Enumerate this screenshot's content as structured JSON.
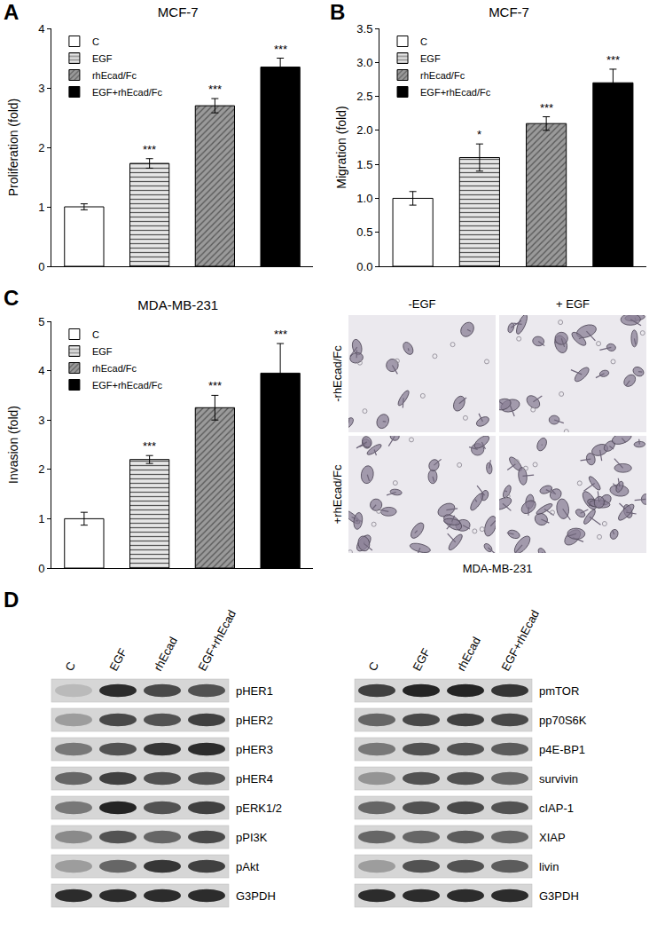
{
  "panel_labels": [
    "A",
    "B",
    "C",
    "D"
  ],
  "chart_data": [
    {
      "type": "bar",
      "title": "MCF-7",
      "ylabel": "Proliferation (fold)",
      "categories": [
        "C",
        "EGF",
        "rhEcad/Fc",
        "EGF+rhEcad/Fc"
      ],
      "values": [
        1.0,
        1.73,
        2.7,
        3.35
      ],
      "errors": [
        0.05,
        0.08,
        0.12,
        0.15
      ],
      "significance": [
        null,
        "***",
        "***",
        "***"
      ],
      "colors": [
        "#ffffff",
        "#e6e6e6",
        "#9a9a9a",
        "#000000"
      ],
      "ylim": [
        0,
        4
      ],
      "yticks": [
        0,
        1,
        2,
        3,
        4
      ],
      "legend": "upper left",
      "tick_labels": "y"
    },
    {
      "type": "bar",
      "title": "MCF-7",
      "ylabel": "Migration (fold)",
      "categories": [
        "C",
        "EGF",
        "rhEcad/Fc",
        "EGF+rhEcad/Fc"
      ],
      "values": [
        1.0,
        1.6,
        2.1,
        2.7
      ],
      "errors": [
        0.1,
        0.2,
        0.1,
        0.2
      ],
      "significance": [
        null,
        "*",
        "***",
        "***"
      ],
      "colors": [
        "#ffffff",
        "#e6e6e6",
        "#9a9a9a",
        "#000000"
      ],
      "ylim": [
        0,
        3.5
      ],
      "yticks": [
        {
          "value": 0,
          "label": "0.0"
        },
        0.5,
        {
          "value": 1,
          "label": "1.0"
        },
        1.5,
        {
          "value": 2,
          "label": "2.0"
        },
        2.5,
        {
          "value": 3,
          "label": "3.0"
        },
        3.5
      ],
      "legend": "upper left",
      "tick_labels": "y"
    },
    {
      "type": "bar",
      "title": "MDA-MB-231",
      "ylabel": "Invasion (fold)",
      "categories": [
        "C",
        "EGF",
        "rhEcad/Fc",
        "EGF+rhEcad/Fc"
      ],
      "values": [
        1.0,
        2.2,
        3.25,
        3.95
      ],
      "errors": [
        0.13,
        0.08,
        0.25,
        0.6
      ],
      "significance": [
        null,
        "***",
        "***",
        "***"
      ],
      "colors": [
        "#ffffff",
        "#e6e6e6",
        "#9a9a9a",
        "#000000"
      ],
      "ylim": [
        0,
        5
      ],
      "yticks": [
        0,
        1,
        2,
        3,
        4,
        5
      ],
      "legend": "upper left",
      "tick_labels": "y"
    }
  ],
  "micrographs": {
    "columns": [
      "-EGF",
      "+ EGF"
    ],
    "rows": [
      "-rhEcad/Fc",
      "+rhEcad/Fc"
    ],
    "caption": "MDA-MB-231"
  },
  "blots": {
    "lanes": [
      "C",
      "EGF",
      "rhEcad",
      "EGF+rhEcad"
    ],
    "panels": [
      {
        "rows": [
          {
            "label": "pHER1",
            "intensity": [
              0.15,
              0.9,
              0.75,
              0.7
            ]
          },
          {
            "label": "pHER2",
            "intensity": [
              0.3,
              0.75,
              0.7,
              0.8
            ]
          },
          {
            "label": "pHER3",
            "intensity": [
              0.5,
              0.7,
              0.85,
              0.9
            ]
          },
          {
            "label": "pHER4",
            "intensity": [
              0.6,
              0.8,
              0.7,
              0.7
            ]
          },
          {
            "label": "pERK1/2",
            "intensity": [
              0.5,
              0.95,
              0.7,
              0.8
            ]
          },
          {
            "label": "pPI3K",
            "intensity": [
              0.4,
              0.7,
              0.6,
              0.75
            ]
          },
          {
            "label": "pAkt",
            "intensity": [
              0.3,
              0.6,
              0.85,
              0.8
            ]
          },
          {
            "label": "G3PDH",
            "intensity": [
              0.9,
              0.9,
              0.9,
              0.9
            ]
          }
        ]
      },
      {
        "rows": [
          {
            "label": "pmTOR",
            "intensity": [
              0.8,
              0.95,
              0.95,
              0.85
            ]
          },
          {
            "label": "pp70S6K",
            "intensity": [
              0.6,
              0.75,
              0.8,
              0.75
            ]
          },
          {
            "label": "p4E-BP1",
            "intensity": [
              0.5,
              0.7,
              0.7,
              0.65
            ]
          },
          {
            "label": "survivin",
            "intensity": [
              0.35,
              0.7,
              0.7,
              0.6
            ]
          },
          {
            "label": "cIAP-1",
            "intensity": [
              0.6,
              0.7,
              0.75,
              0.7
            ]
          },
          {
            "label": "XIAP",
            "intensity": [
              0.6,
              0.6,
              0.65,
              0.6
            ]
          },
          {
            "label": "livin",
            "intensity": [
              0.3,
              0.7,
              0.7,
              0.65
            ]
          },
          {
            "label": "G3PDH",
            "intensity": [
              0.9,
              0.9,
              0.9,
              0.9
            ]
          }
        ]
      }
    ]
  }
}
